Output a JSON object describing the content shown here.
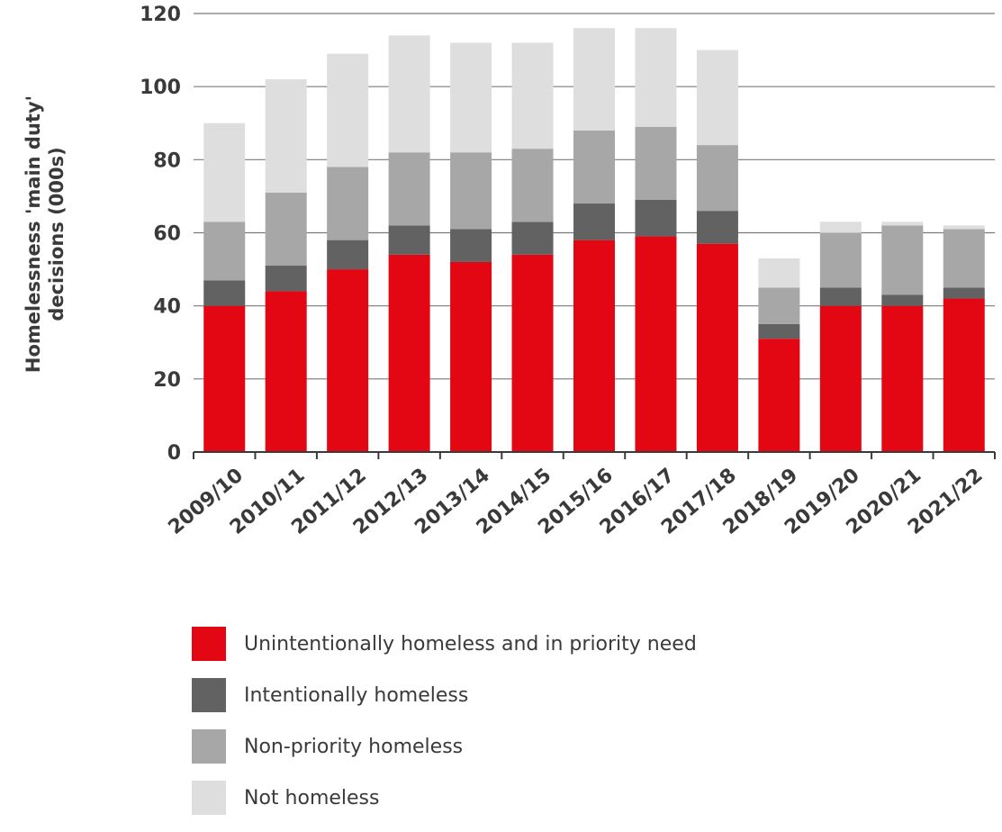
{
  "chart_data": {
    "type": "bar",
    "stacked": true,
    "title": "",
    "xlabel": "",
    "ylabel_lines": [
      "Homelessness 'main duty'",
      "decisions (000s)"
    ],
    "ylim": [
      0,
      120
    ],
    "yticks": [
      0,
      20,
      40,
      60,
      80,
      100,
      120
    ],
    "grid": true,
    "legend_placement": "bottom",
    "categories": [
      "2009/10",
      "2010/11",
      "2011/12",
      "2012/13",
      "2013/14",
      "2014/15",
      "2015/16",
      "2016/17",
      "2017/18",
      "2018/19",
      "2019/20",
      "2020/21",
      "2021/22"
    ],
    "series": [
      {
        "name": "Unintentionally homeless and in priority need",
        "color": "#e30613",
        "values": [
          40,
          44,
          50,
          54,
          52,
          54,
          58,
          59,
          57,
          31,
          40,
          40,
          42
        ]
      },
      {
        "name": "Intentionally homeless",
        "color": "#626262",
        "values": [
          7,
          7,
          8,
          8,
          9,
          9,
          10,
          10,
          9,
          4,
          5,
          3,
          3
        ]
      },
      {
        "name": "Non-priority homeless",
        "color": "#a7a7a7",
        "values": [
          16,
          20,
          20,
          20,
          21,
          20,
          20,
          20,
          18,
          10,
          15,
          19,
          16
        ]
      },
      {
        "name": "Not homeless",
        "color": "#dedede",
        "values": [
          27,
          31,
          31,
          32,
          30,
          29,
          28,
          27,
          26,
          8,
          3,
          1,
          1
        ]
      }
    ]
  }
}
